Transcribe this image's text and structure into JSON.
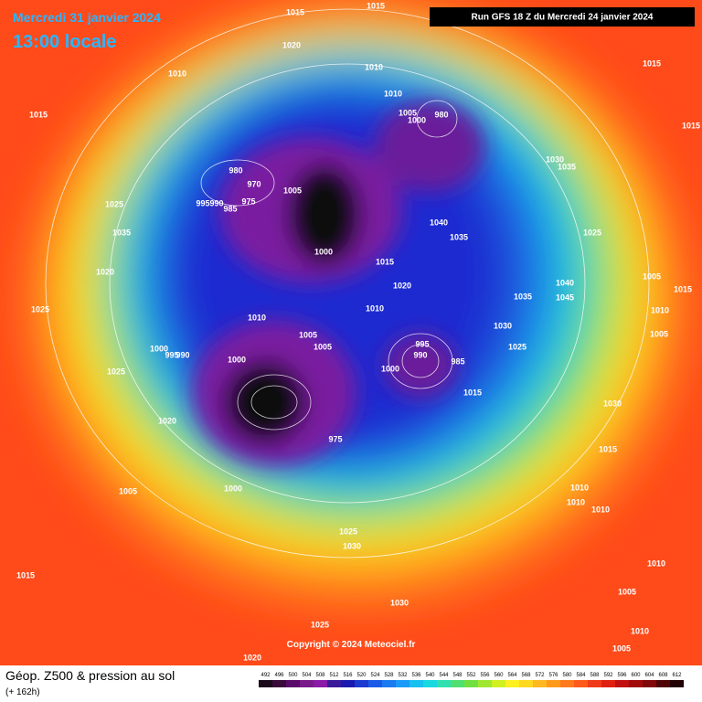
{
  "header": {
    "date": "Mercredi 31 janvier 2024",
    "time": "13:00 locale",
    "run": "Run GFS 18 Z du Mercredi 24 janvier 2024"
  },
  "footer": {
    "title": "Géop. Z500 & pression au sol",
    "subtitle": "(+ 162h)",
    "copyright": "Copyright © 2024 Meteociel.fr"
  },
  "legend": {
    "labels": [
      "492",
      "496",
      "500",
      "504",
      "508",
      "512",
      "516",
      "520",
      "524",
      "528",
      "532",
      "536",
      "540",
      "544",
      "548",
      "552",
      "556",
      "560",
      "564",
      "568",
      "572",
      "576",
      "580",
      "584",
      "588",
      "592",
      "596",
      "600",
      "604",
      "608",
      "612"
    ]
  },
  "isobars": [
    "1015",
    "1015",
    "1020",
    "1010",
    "1010",
    "1015",
    "1015",
    "1010",
    "1005",
    "1000",
    "980",
    "1015",
    "980",
    "970",
    "1005",
    "975",
    "995",
    "990",
    "985",
    "1025",
    "1035",
    "1000",
    "1040",
    "1035",
    "1025",
    "1030",
    "1035",
    "1020",
    "1015",
    "1020",
    "1005",
    "1035",
    "1040",
    "1045",
    "1015",
    "1025",
    "1010",
    "1010",
    "1030",
    "1010",
    "1005",
    "1000",
    "995",
    "990",
    "1000",
    "1005",
    "1005",
    "995",
    "990",
    "985",
    "1025",
    "1000",
    "1025",
    "1015",
    "1030",
    "1020",
    "1015",
    "975",
    "1005",
    "1000",
    "1010",
    "1010",
    "1010",
    "1025",
    "1030",
    "1015",
    "1010",
    "1030",
    "1005",
    "1025",
    "1010",
    "1005",
    "1020"
  ]
}
